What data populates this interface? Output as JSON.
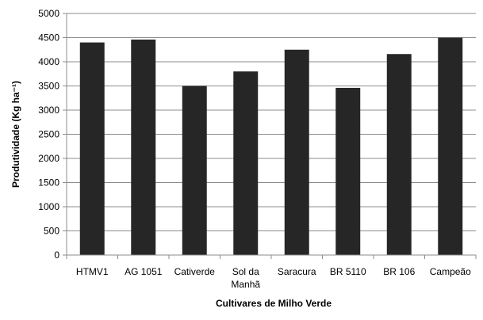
{
  "chart_data": {
    "type": "bar",
    "categories": [
      "HTMV1",
      "AG 1051",
      "Cativerde",
      "Sol da\nManhã",
      "Saracura",
      "BR 5110",
      "BR 106",
      "Campeão"
    ],
    "values": [
      4400,
      4460,
      3500,
      3800,
      4250,
      3460,
      4160,
      4500
    ],
    "ylim": [
      0,
      5000
    ],
    "yticks": [
      "0",
      "500",
      "1000",
      "1500",
      "2000",
      "2500",
      "3000",
      "3500",
      "4000",
      "4500",
      "5000"
    ],
    "xlabel": "Cultivares de Milho Verde",
    "ylabel": "Produtividade (Kg ha⁻¹)",
    "grid": true,
    "legend": "none",
    "colors": {
      "bar": "#262626",
      "grid": "#8c8c8c",
      "axis": "#8c8c8c"
    }
  }
}
